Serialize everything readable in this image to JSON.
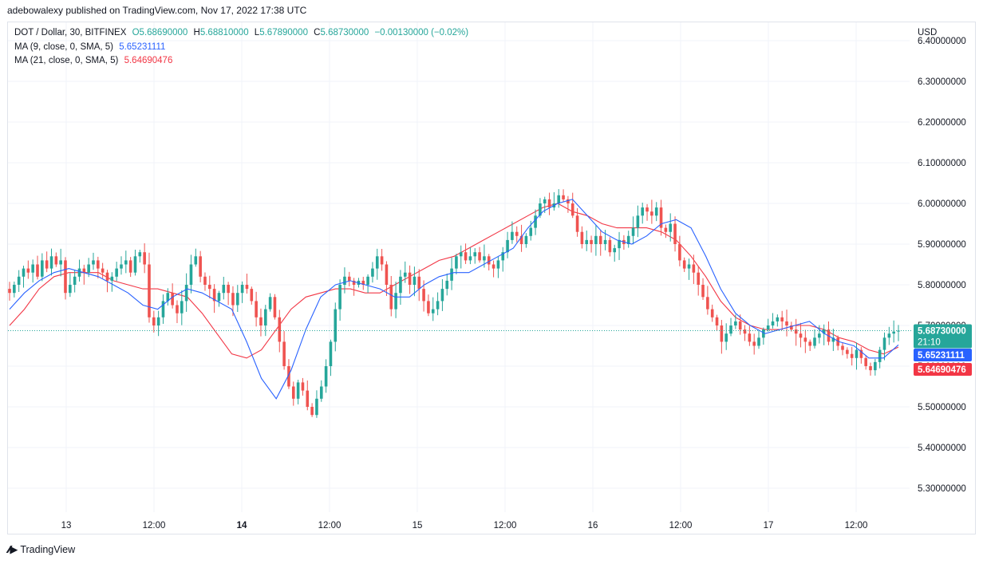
{
  "header": {
    "published_text": "adebowalexy published on TradingView.com, Nov 17, 2022 17:38 UTC"
  },
  "legend": {
    "symbol": "DOT / Dollar, 30, BITFINEX",
    "open_label": "O",
    "open": "5.68690000",
    "high_label": "H",
    "high": "5.68810000",
    "low_label": "L",
    "low": "5.67890000",
    "close_label": "C",
    "close": "5.68730000",
    "change": "−0.00130000 (−0.02%)",
    "ma9_label": "MA (9, close, 0, SMA, 5)",
    "ma9_value": "5.65231111",
    "ma21_label": "MA (21, close, 0, SMA, 5)",
    "ma21_value": "5.64690476"
  },
  "footer": {
    "brand": "TradingView"
  },
  "colors": {
    "up": "#26a69a",
    "down": "#ef5350",
    "ma9": "#2962ff",
    "ma21": "#f23645",
    "price_label_bg": "#26a69a",
    "ma9_label_bg": "#2962ff",
    "ma21_label_bg": "#f23645",
    "grid": "#f0f3fa",
    "text": "#131722"
  },
  "chart_data": {
    "type": "candlestick",
    "symbol": "DOT / Dollar",
    "interval": "30",
    "exchange": "BITFINEX",
    "currency_label": "USD",
    "y_ticks": [
      "6.40000000",
      "6.30000000",
      "6.20000000",
      "6.10000000",
      "6.00000000",
      "5.90000000",
      "5.80000000",
      "5.70000000",
      "5.60000000",
      "5.50000000",
      "5.40000000",
      "5.30000000"
    ],
    "ylim": [
      5.22,
      6.44
    ],
    "x_ticks": [
      {
        "label": "13",
        "bold": false
      },
      {
        "label": "12:00",
        "bold": false
      },
      {
        "label": "14",
        "bold": true
      },
      {
        "label": "12:00",
        "bold": false
      },
      {
        "label": "15",
        "bold": false
      },
      {
        "label": "12:00",
        "bold": false
      },
      {
        "label": "16",
        "bold": false
      },
      {
        "label": "12:00",
        "bold": false
      },
      {
        "label": "17",
        "bold": false
      },
      {
        "label": "12:00",
        "bold": false
      }
    ],
    "last_price": 5.6873,
    "last_price_label": "5.68730000",
    "countdown": "21:10",
    "ma9_last": 5.65231111,
    "ma9_last_label": "5.65231111",
    "ma21_last": 5.64690476,
    "ma21_last_label": "5.64690476",
    "close_path": [
      5.78,
      5.8,
      5.82,
      5.84,
      5.83,
      5.85,
      5.82,
      5.86,
      5.84,
      5.87,
      5.85,
      5.86,
      5.78,
      5.8,
      5.82,
      5.84,
      5.83,
      5.85,
      5.86,
      5.84,
      5.83,
      5.81,
      5.82,
      5.84,
      5.85,
      5.86,
      5.83,
      5.87,
      5.88,
      5.85,
      5.72,
      5.7,
      5.72,
      5.76,
      5.78,
      5.75,
      5.73,
      5.76,
      5.8,
      5.85,
      5.87,
      5.82,
      5.8,
      5.79,
      5.76,
      5.78,
      5.8,
      5.78,
      5.75,
      5.78,
      5.8,
      5.79,
      5.76,
      5.72,
      5.7,
      5.74,
      5.77,
      5.72,
      5.66,
      5.6,
      5.55,
      5.52,
      5.56,
      5.54,
      5.5,
      5.48,
      5.52,
      5.55,
      5.6,
      5.66,
      5.74,
      5.8,
      5.82,
      5.81,
      5.8,
      5.81,
      5.8,
      5.82,
      5.84,
      5.87,
      5.85,
      5.8,
      5.74,
      5.78,
      5.82,
      5.83,
      5.8,
      5.82,
      5.79,
      5.76,
      5.73,
      5.74,
      5.76,
      5.79,
      5.81,
      5.84,
      5.87,
      5.88,
      5.86,
      5.87,
      5.88,
      5.86,
      5.87,
      5.85,
      5.84,
      5.86,
      5.88,
      5.91,
      5.93,
      5.92,
      5.9,
      5.92,
      5.94,
      5.97,
      6.0,
      6.01,
      5.99,
      6.0,
      6.02,
      6.01,
      6.0,
      5.97,
      5.93,
      5.9,
      5.91,
      5.9,
      5.92,
      5.9,
      5.91,
      5.88,
      5.89,
      5.91,
      5.9,
      5.92,
      5.94,
      5.97,
      5.99,
      5.98,
      5.97,
      5.99,
      5.94,
      5.93,
      5.95,
      5.9,
      5.86,
      5.84,
      5.85,
      5.83,
      5.8,
      5.77,
      5.74,
      5.72,
      5.7,
      5.66,
      5.68,
      5.7,
      5.71,
      5.69,
      5.68,
      5.66,
      5.65,
      5.67,
      5.69,
      5.7,
      5.71,
      5.72,
      5.71,
      5.7,
      5.69,
      5.68,
      5.67,
      5.66,
      5.65,
      5.67,
      5.68,
      5.69,
      5.66,
      5.67,
      5.65,
      5.64,
      5.63,
      5.62,
      5.64,
      5.62,
      5.6,
      5.59,
      5.61,
      5.64,
      5.67,
      5.68,
      5.685,
      5.6873
    ],
    "ma9_path": [
      5.74,
      5.78,
      5.81,
      5.83,
      5.84,
      5.83,
      5.82,
      5.8,
      5.78,
      5.75,
      5.74,
      5.77,
      5.79,
      5.78,
      5.76,
      5.74,
      5.66,
      5.57,
      5.52,
      5.59,
      5.69,
      5.77,
      5.8,
      5.81,
      5.8,
      5.79,
      5.77,
      5.77,
      5.8,
      5.82,
      5.83,
      5.83,
      5.85,
      5.87,
      5.89,
      5.94,
      5.98,
      6.0,
      6.01,
      5.97,
      5.93,
      5.91,
      5.9,
      5.92,
      5.95,
      5.96,
      5.94,
      5.87,
      5.79,
      5.73,
      5.7,
      5.68,
      5.69,
      5.7,
      5.71,
      5.68,
      5.66,
      5.65,
      5.62,
      5.62,
      5.6523
    ],
    "ma21_path": [
      5.7,
      5.74,
      5.79,
      5.82,
      5.83,
      5.83,
      5.83,
      5.81,
      5.8,
      5.79,
      5.79,
      5.78,
      5.77,
      5.73,
      5.68,
      5.63,
      5.62,
      5.64,
      5.69,
      5.74,
      5.77,
      5.78,
      5.79,
      5.79,
      5.78,
      5.78,
      5.8,
      5.82,
      5.84,
      5.86,
      5.87,
      5.89,
      5.91,
      5.93,
      5.95,
      5.97,
      5.99,
      6.0,
      5.98,
      5.97,
      5.95,
      5.94,
      5.94,
      5.94,
      5.93,
      5.91,
      5.87,
      5.82,
      5.76,
      5.72,
      5.7,
      5.69,
      5.69,
      5.7,
      5.7,
      5.69,
      5.67,
      5.66,
      5.64,
      5.63,
      5.6469
    ]
  }
}
